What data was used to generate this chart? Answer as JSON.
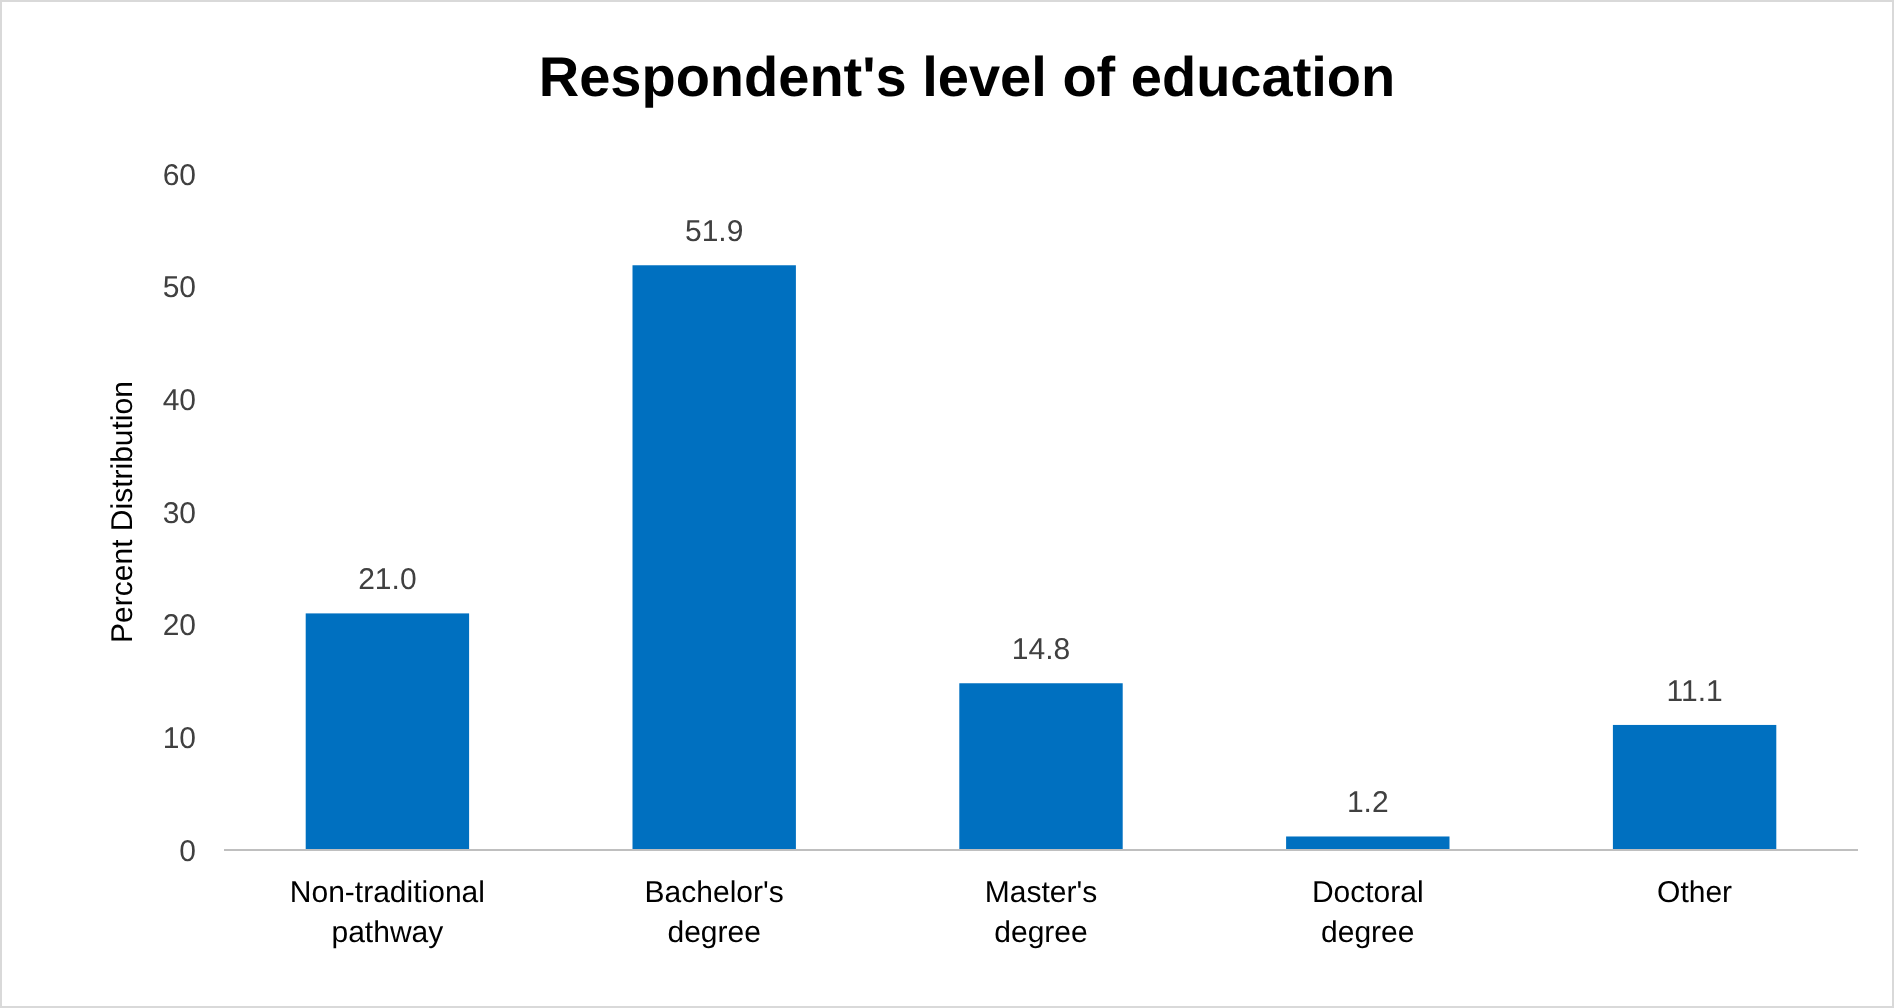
{
  "chart_data": {
    "type": "bar",
    "title": "Respondent's level of education",
    "ylabel": "Percent Distribution",
    "categories": [
      "Non-traditional pathway",
      "Bachelor's degree",
      "Master's degree",
      "Doctoral degree",
      "Other"
    ],
    "values": [
      21.0,
      51.9,
      14.8,
      1.2,
      11.1
    ],
    "value_labels": [
      "21.0",
      "51.9",
      "14.8",
      "1.2",
      "11.1"
    ],
    "color": "#0070c0",
    "ylim": [
      0,
      60
    ],
    "yticks": [
      0,
      10,
      20,
      30,
      40,
      50,
      60
    ],
    "grid": false
  }
}
